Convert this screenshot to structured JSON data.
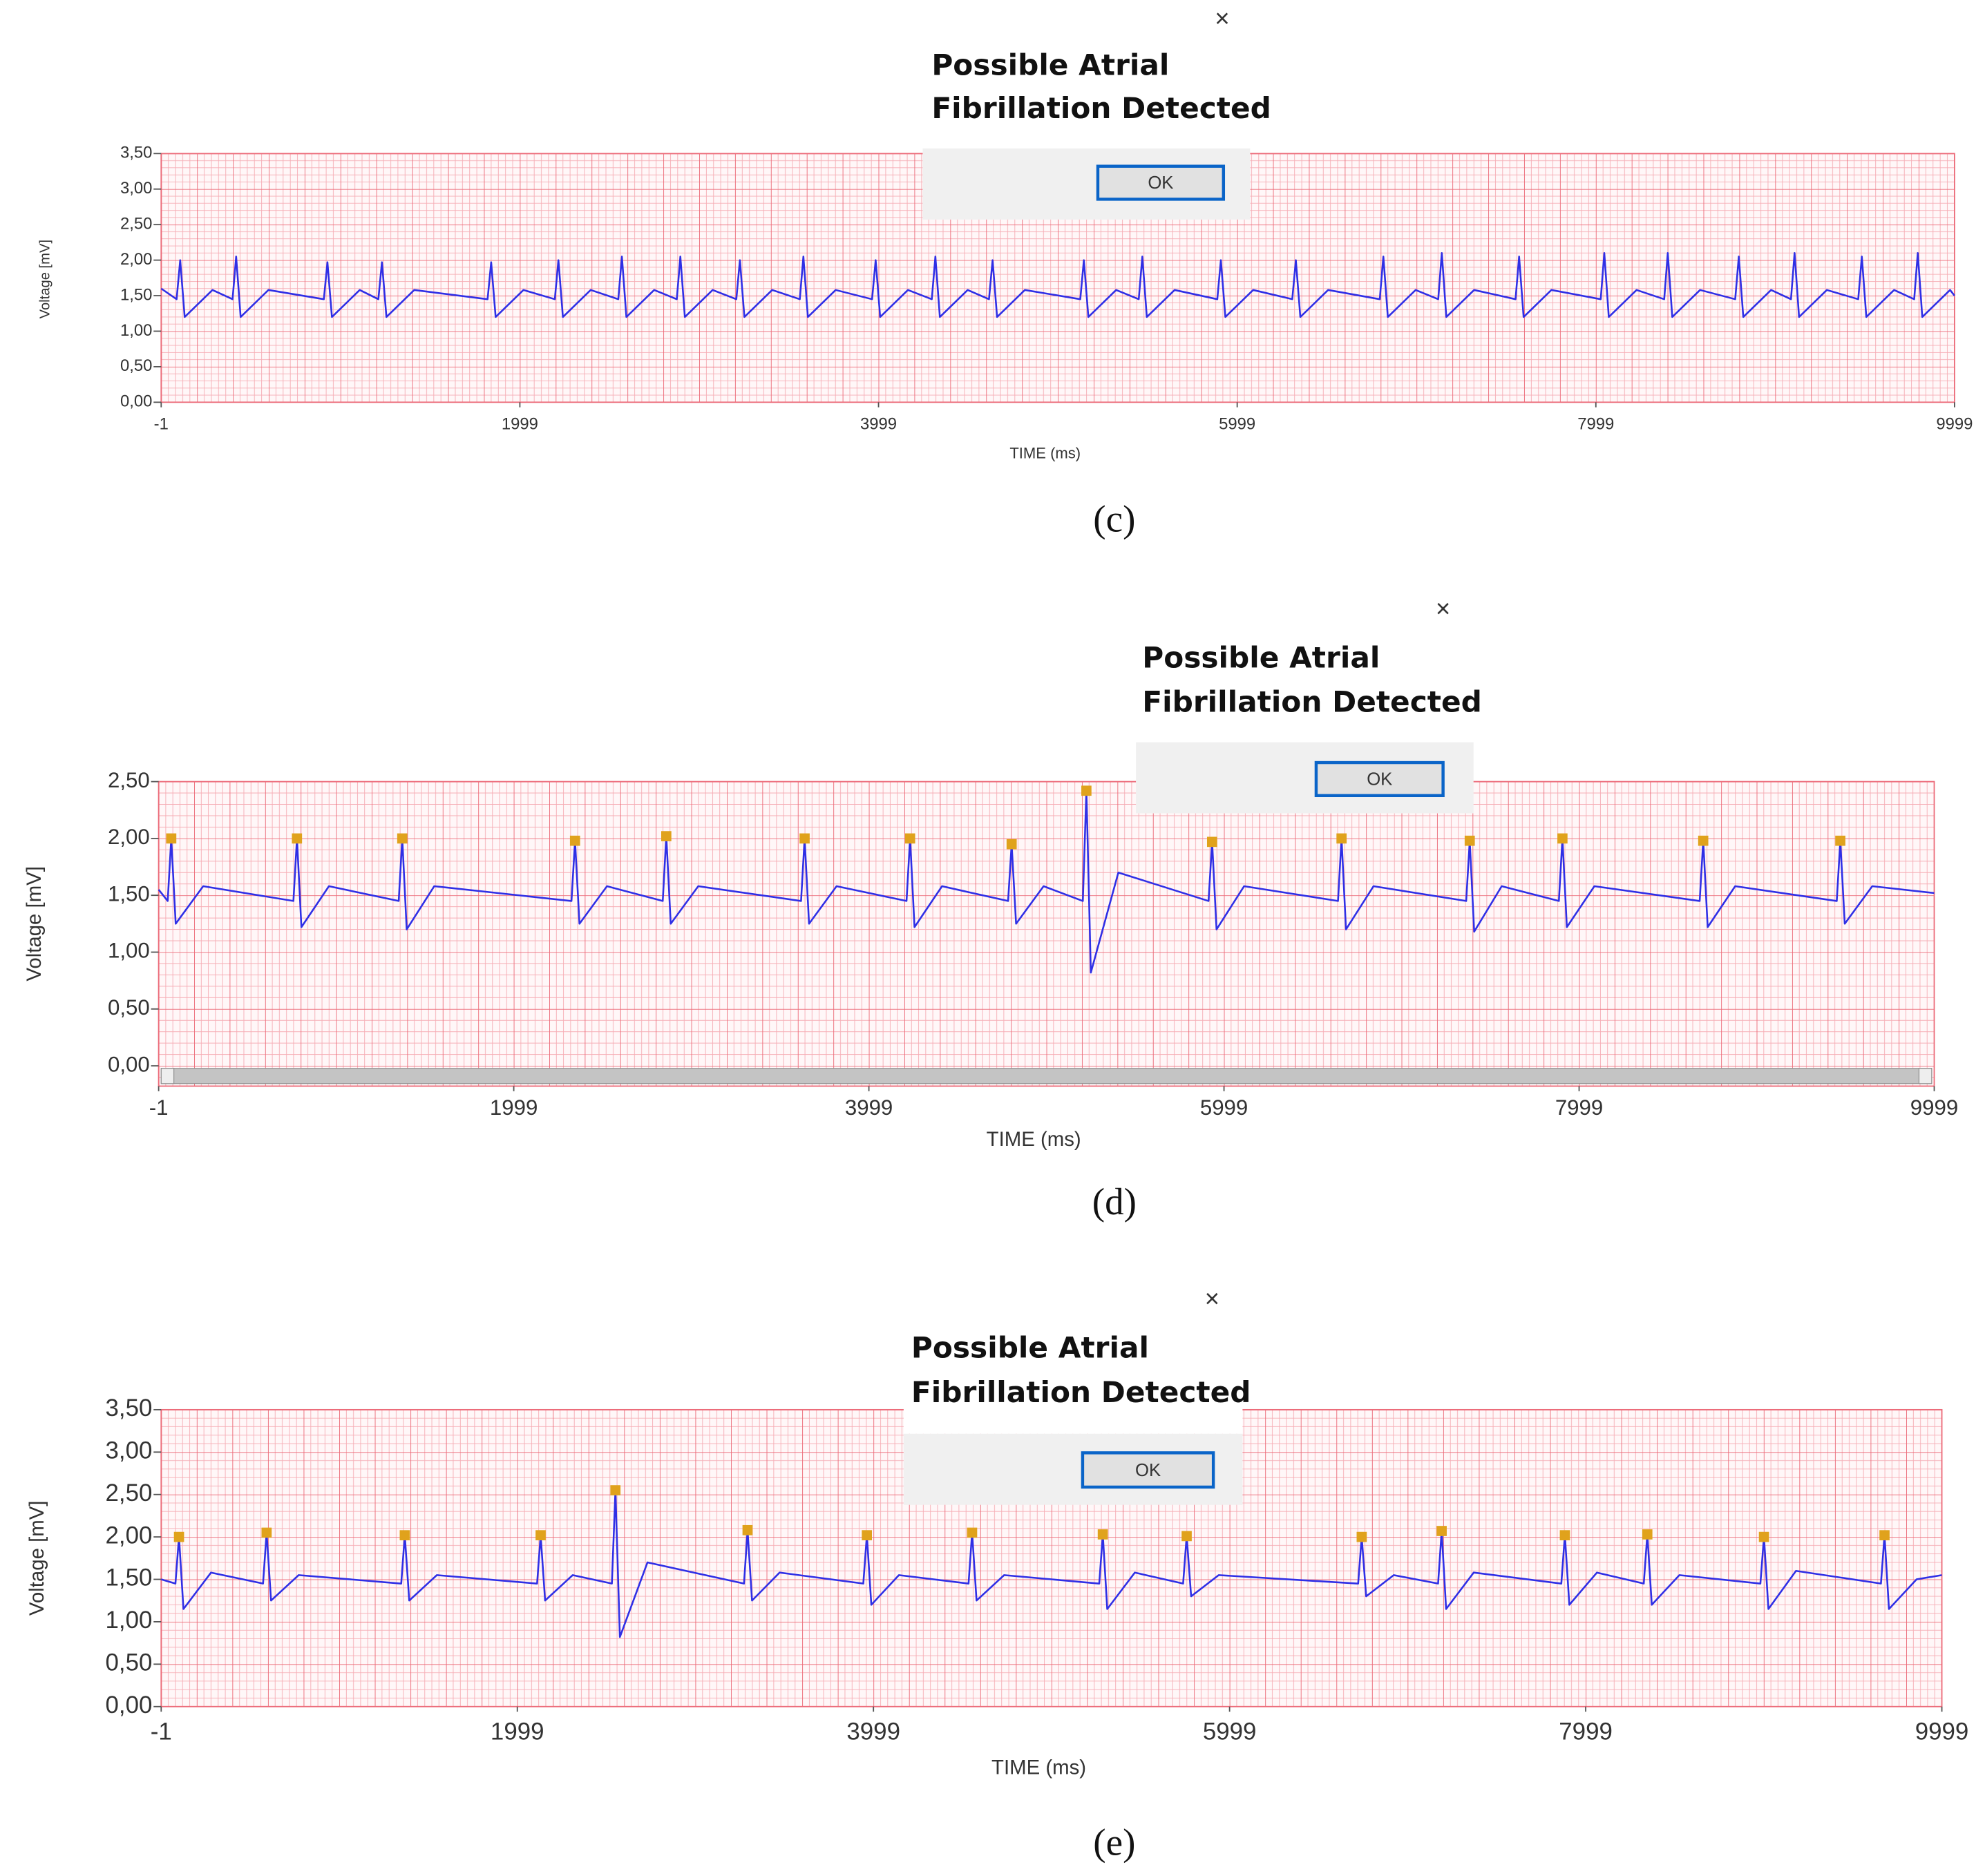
{
  "chart_data": [
    {
      "type": "line",
      "panel": "(c)",
      "ylabel": "Voltage [mV]",
      "xlabel": "TIME (ms)",
      "dialog": {
        "close": "×",
        "message": [
          "Possible Atrial",
          "Fibrillation Detected"
        ],
        "button": "OK"
      },
      "xlim": [
        -1,
        9999
      ],
      "xticks": [
        -1,
        1999,
        3999,
        5999,
        7999,
        9999
      ],
      "ylim": [
        0,
        3.5
      ],
      "yticks": [
        {
          "value": 0,
          "label": "0,00"
        },
        {
          "value": 0.5,
          "label": "0,50"
        },
        {
          "value": 1,
          "label": "1,00"
        },
        {
          "value": 1.5,
          "label": "1,50"
        },
        {
          "value": 2,
          "label": "2,00"
        },
        {
          "value": 2.5,
          "label": "2,50"
        },
        {
          "value": 3,
          "label": "3,00"
        },
        {
          "value": 3.5,
          "label": "3,50"
        }
      ],
      "grid": true,
      "series": [
        {
          "color": "#2f2fe6",
          "x": [
            -1,
            85,
            105,
            130,
            285,
            397,
            417,
            442,
            597,
            906,
            926,
            951,
            1106,
            1210,
            1230,
            1255,
            1410,
            1819,
            1839,
            1864,
            2019,
            2194,
            2214,
            2239,
            2394,
            2548,
            2568,
            2593,
            2748,
            2874,
            2894,
            2919,
            3074,
            3206,
            3226,
            3251,
            3406,
            3560,
            3580,
            3605,
            3760,
            3963,
            3983,
            4008,
            4163,
            4296,
            4316,
            4341,
            4496,
            4615,
            4635,
            4660,
            4815,
            5124,
            5144,
            5169,
            5324,
            5450,
            5470,
            5495,
            5650,
            5888,
            5908,
            5933,
            6088,
            6306,
            6326,
            6351,
            6506,
            6794,
            6814,
            6839,
            6994,
            7120,
            7140,
            7165,
            7320,
            7551,
            7571,
            7596,
            7751,
            8026,
            8046,
            8071,
            8226,
            8380,
            8400,
            8425,
            8580,
            8776,
            8796,
            8821,
            8976,
            9087,
            9107,
            9132,
            9287,
            9462,
            9482,
            9507,
            9662,
            9774,
            9794,
            9819,
            9974,
            9999
          ],
          "values": [
            1.6,
            1.45,
            2.0,
            1.2,
            1.58,
            1.45,
            2.05,
            1.2,
            1.58,
            1.45,
            1.97,
            1.2,
            1.58,
            1.45,
            1.97,
            1.2,
            1.58,
            1.45,
            1.97,
            1.2,
            1.58,
            1.45,
            2.0,
            1.2,
            1.58,
            1.45,
            2.05,
            1.2,
            1.58,
            1.45,
            2.05,
            1.2,
            1.58,
            1.45,
            2.0,
            1.2,
            1.58,
            1.45,
            2.05,
            1.2,
            1.58,
            1.45,
            2.0,
            1.2,
            1.58,
            1.45,
            2.05,
            1.2,
            1.58,
            1.45,
            2.0,
            1.2,
            1.58,
            1.45,
            2.0,
            1.2,
            1.58,
            1.45,
            2.05,
            1.2,
            1.58,
            1.45,
            2.0,
            1.2,
            1.58,
            1.45,
            2.0,
            1.2,
            1.58,
            1.45,
            2.05,
            1.2,
            1.58,
            1.45,
            2.1,
            1.2,
            1.58,
            1.45,
            2.05,
            1.2,
            1.58,
            1.45,
            2.1,
            1.2,
            1.58,
            1.45,
            2.1,
            1.2,
            1.58,
            1.45,
            2.05,
            1.2,
            1.58,
            1.45,
            2.1,
            1.2,
            1.58,
            1.45,
            2.05,
            1.2,
            1.58,
            1.45,
            2.1,
            1.2,
            1.58,
            1.5
          ]
        }
      ]
    },
    {
      "type": "line",
      "panel": "(d)",
      "ylabel": "Voltage [mV]",
      "xlabel": "TIME (ms)",
      "dialog": {
        "close": "×",
        "message": [
          "Possible Atrial",
          "Fibrillation Detected"
        ],
        "button": "OK"
      },
      "xlim": [
        -1,
        9999
      ],
      "xticks": [
        -1,
        1999,
        3999,
        5999,
        7999,
        9999
      ],
      "ylim": [
        0,
        2.5
      ],
      "yticks": [
        {
          "value": 0,
          "label": "0,00"
        },
        {
          "value": 0.5,
          "label": "0,50"
        },
        {
          "value": 1,
          "label": "1,00"
        },
        {
          "value": 1.5,
          "label": "1,50"
        },
        {
          "value": 2,
          "label": "2,00"
        },
        {
          "value": 2.5,
          "label": "2,50"
        }
      ],
      "grid": true,
      "series": [
        {
          "color": "#2f2fe6",
          "x": [
            -1,
            50,
            70,
            95,
            250,
            758,
            778,
            803,
            958,
            1351,
            1371,
            1396,
            1551,
            2324,
            2344,
            2369,
            2524,
            2838,
            2858,
            2883,
            3038,
            3617,
            3637,
            3662,
            3817,
            4211,
            4231,
            4256,
            4411,
            4783,
            4803,
            4828,
            4983,
            5204,
            5224,
            5249,
            5404,
            5912,
            5932,
            5957,
            6112,
            6641,
            6661,
            6686,
            6841,
            7363,
            7383,
            7408,
            7563,
            7885,
            7905,
            7930,
            8085,
            8678,
            8698,
            8723,
            8878,
            9450,
            9470,
            9495,
            9650,
            9999
          ],
          "values": [
            1.55,
            1.45,
            2.0,
            1.25,
            1.58,
            1.45,
            2.0,
            1.22,
            1.58,
            1.45,
            2.0,
            1.2,
            1.58,
            1.45,
            1.98,
            1.25,
            1.58,
            1.45,
            2.02,
            1.25,
            1.58,
            1.45,
            2.0,
            1.25,
            1.58,
            1.45,
            2.0,
            1.22,
            1.58,
            1.45,
            1.95,
            1.25,
            1.58,
            1.45,
            2.42,
            0.82,
            1.7,
            1.45,
            1.97,
            1.2,
            1.58,
            1.45,
            2.0,
            1.2,
            1.58,
            1.45,
            1.98,
            1.18,
            1.58,
            1.45,
            2.0,
            1.22,
            1.58,
            1.45,
            1.98,
            1.22,
            1.58,
            1.45,
            1.98,
            1.25,
            1.58,
            1.52
          ]
        }
      ],
      "markers": {
        "color": "#e0a21c",
        "x": [
          70,
          778,
          1371,
          2344,
          2858,
          3637,
          4231,
          4803,
          5224,
          5932,
          6661,
          7383,
          7905,
          8698,
          9470
        ],
        "values": [
          2.0,
          2.0,
          2.0,
          1.98,
          2.02,
          2.0,
          2.0,
          1.95,
          2.42,
          1.97,
          2.0,
          1.98,
          2.0,
          1.98,
          1.98
        ]
      }
    },
    {
      "type": "line",
      "panel": "(e)",
      "ylabel": "Voltage [mV]",
      "xlabel": "TIME (ms)",
      "dialog": {
        "close": "×",
        "message": [
          "Possible Atrial",
          "Fibrillation Detected"
        ],
        "button": "OK"
      },
      "xlim": [
        -1,
        9999
      ],
      "xticks": [
        -1,
        1999,
        3999,
        5999,
        7999,
        9999
      ],
      "ylim": [
        0,
        3.5
      ],
      "yticks": [
        {
          "value": 0,
          "label": "0,00"
        },
        {
          "value": 0.5,
          "label": "0,50"
        },
        {
          "value": 1,
          "label": "1,00"
        },
        {
          "value": 1.5,
          "label": "1,50"
        },
        {
          "value": 2,
          "label": "2,00"
        },
        {
          "value": 2.5,
          "label": "2,50"
        },
        {
          "value": 3,
          "label": "3,00"
        },
        {
          "value": 3.5,
          "label": "3,50"
        }
      ],
      "grid": true,
      "series": [
        {
          "color": "#2f2fe6",
          "x": [
            -1,
            79,
            99,
            124,
            279,
            571,
            591,
            616,
            771,
            1347,
            1367,
            1392,
            1547,
            2110,
            2130,
            2155,
            2310,
            2530,
            2550,
            2575,
            2730,
            3272,
            3292,
            3317,
            3472,
            3942,
            3962,
            3987,
            4142,
            4533,
            4553,
            4578,
            4733,
            5267,
            5287,
            5312,
            5467,
            5738,
            5758,
            5783,
            5938,
            6721,
            6741,
            6766,
            6921,
            7170,
            7190,
            7215,
            7370,
            7862,
            7882,
            7907,
            8062,
            8325,
            8345,
            8370,
            8525,
            8980,
            9000,
            9025,
            9180,
            9657,
            9677,
            9702,
            9857,
            9999
          ],
          "values": [
            1.5,
            1.45,
            2.0,
            1.15,
            1.58,
            1.45,
            2.05,
            1.25,
            1.55,
            1.45,
            2.02,
            1.25,
            1.55,
            1.45,
            2.02,
            1.25,
            1.55,
            1.45,
            2.55,
            0.82,
            1.7,
            1.45,
            2.08,
            1.25,
            1.58,
            1.45,
            2.02,
            1.2,
            1.55,
            1.45,
            2.05,
            1.25,
            1.55,
            1.45,
            2.03,
            1.15,
            1.58,
            1.45,
            2.01,
            1.3,
            1.55,
            1.45,
            2.0,
            1.3,
            1.55,
            1.45,
            2.07,
            1.15,
            1.58,
            1.45,
            2.02,
            1.2,
            1.58,
            1.45,
            2.03,
            1.2,
            1.55,
            1.45,
            2.0,
            1.15,
            1.6,
            1.45,
            2.02,
            1.15,
            1.5,
            1.55
          ]
        }
      ],
      "markers": {
        "color": "#e0a21c",
        "x": [
          99,
          591,
          1367,
          2130,
          2550,
          3292,
          3962,
          4553,
          5287,
          5758,
          6741,
          7190,
          7882,
          8345,
          9000,
          9677
        ],
        "values": [
          2.0,
          2.05,
          2.02,
          2.02,
          2.55,
          2.08,
          2.02,
          2.05,
          2.03,
          2.01,
          2.0,
          2.07,
          2.02,
          2.03,
          2.0,
          2.02
        ]
      }
    }
  ]
}
